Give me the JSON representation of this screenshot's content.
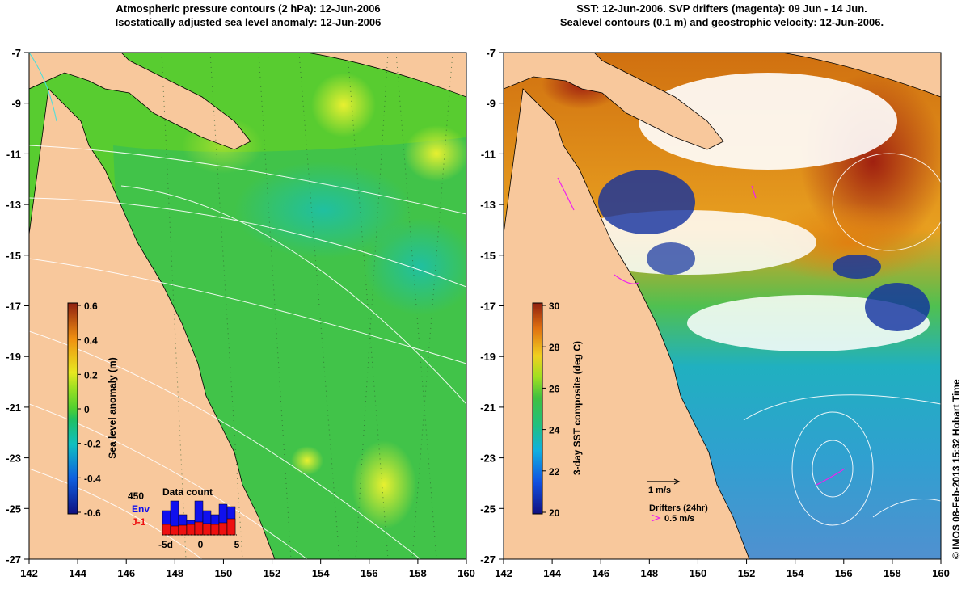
{
  "left_panel": {
    "title_line1": "Atmospheric pressure contours (2 hPa): 12-Jun-2006",
    "title_line2": "Isostatically adjusted sea level anomaly: 12-Jun-2006",
    "y_ticks": [
      "-7",
      "-9",
      "-11",
      "-13",
      "-15",
      "-17",
      "-19",
      "-21",
      "-23",
      "-25",
      "-27"
    ],
    "x_ticks": [
      "142",
      "144",
      "146",
      "148",
      "150",
      "152",
      "154",
      "156",
      "158",
      "160"
    ],
    "colorbar": {
      "label": "Sea level anomaly (m)",
      "ticks": [
        "0.6",
        "0.4",
        "0.2",
        "0",
        "-0.2",
        "-0.4",
        "-0.6"
      ],
      "range": [
        -0.6,
        0.6
      ]
    },
    "data_count": {
      "title": "Data count",
      "max_label": "450",
      "env_label": "Env",
      "j1_label": "J-1",
      "x_ticks": [
        "-5d",
        "0",
        "5"
      ],
      "env_values": [
        300,
        420,
        250,
        180,
        420,
        300,
        250,
        380,
        350
      ],
      "j1_values": [
        130,
        110,
        120,
        130,
        160,
        140,
        130,
        150,
        200
      ],
      "colors": {
        "env": "#1010ee",
        "j1": "#ee1010"
      }
    }
  },
  "right_panel": {
    "title_line1": "SST: 12-Jun-2006. SVP drifters (magenta): 09 Jun - 14 Jun.",
    "title_line2": "Sealevel contours (0.1 m) and geostrophic velocity: 12-Jun-2006.",
    "y_ticks": [
      "-7",
      "-9",
      "-11",
      "-13",
      "-15",
      "-17",
      "-19",
      "-21",
      "-23",
      "-25",
      "-27"
    ],
    "x_ticks": [
      "142",
      "144",
      "146",
      "148",
      "150",
      "152",
      "154",
      "156",
      "158",
      "160"
    ],
    "colorbar": {
      "label": "3-day SST composite (deg C)",
      "ticks": [
        "30",
        "28",
        "26",
        "24",
        "22",
        "20"
      ],
      "range": [
        20,
        30
      ]
    },
    "velocity_scale_label": "1 m/s",
    "drifters_label": "Drifters (24hr)",
    "drifter_speed_label": "0.5 m/s"
  },
  "credit": "© IMOS 08-Feb-2013 15:32 Hobart Time",
  "colors": {
    "land": "#f8c89c",
    "coast": "#000000",
    "contour": "#ffffff",
    "drifter": "#ee22ee"
  }
}
